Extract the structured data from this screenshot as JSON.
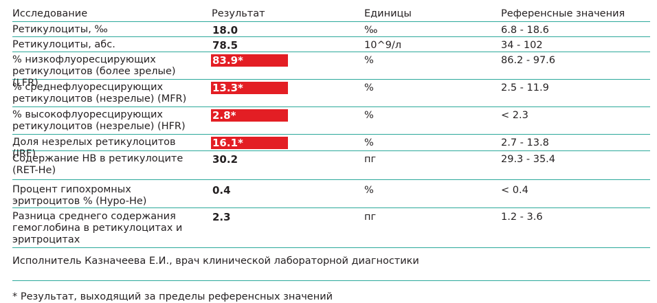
{
  "header": {
    "col_test": "Исследование",
    "col_result": "Результат",
    "col_units": "Единицы",
    "col_reference": "Референсные значения"
  },
  "rows": [
    {
      "name": "Ретикулоциты, ‰",
      "result": "18.0",
      "units": "‰",
      "reference": "6.8 - 18.6",
      "flagged": false
    },
    {
      "name": "Ретикулоциты, абс.",
      "result": "78.5",
      "units": "10^9/л",
      "reference": "34 - 102",
      "flagged": false
    },
    {
      "name": "% низкофлуоресцирующих ретикулоцитов (более зрелые) (LFR)",
      "result": "83.9*",
      "units": "%",
      "reference": "86.2 - 97.6",
      "flagged": true
    },
    {
      "name": "% среднефлуоресцирующих ретикулоцитов (незрелые) (MFR)",
      "result": "13.3*",
      "units": "%",
      "reference": "2.5 - 11.9",
      "flagged": true
    },
    {
      "name": "% высокофлуоресцирующих ретикулоцитов (незрелые) (HFR)",
      "result": "2.8*",
      "units": "%",
      "reference": "< 2.3",
      "flagged": true
    },
    {
      "name": "Доля незрелых ретикулоцитов (IRF)",
      "result": "16.1*",
      "units": "%",
      "reference": "2.7 - 13.8",
      "flagged": true
    },
    {
      "name": "Содержание HB в ретикулоците (RET-He)",
      "result": "30.2",
      "units": "пг",
      "reference": "29.3 - 35.4",
      "flagged": false
    },
    {
      "name": "Процент гипохромных эритроцитов % (Hypo-He)",
      "result": "0.4",
      "units": "%",
      "reference": "< 0.4",
      "flagged": false
    },
    {
      "name": "Разница среднего содержания гемоглобина в ретикулоцитах и эритроцитах",
      "result": "2.3",
      "units": "пг",
      "reference": "1.2 - 3.6",
      "flagged": false
    }
  ],
  "performer": "Исполнитель Казначеева  Е.И., врач клинической лабораторной диагностики",
  "footnote": "* Результат, выходящий за пределы референсных значений",
  "colors": {
    "rule": "#2aa89a",
    "flag_bg": "#e31e24",
    "text": "#231f20"
  }
}
